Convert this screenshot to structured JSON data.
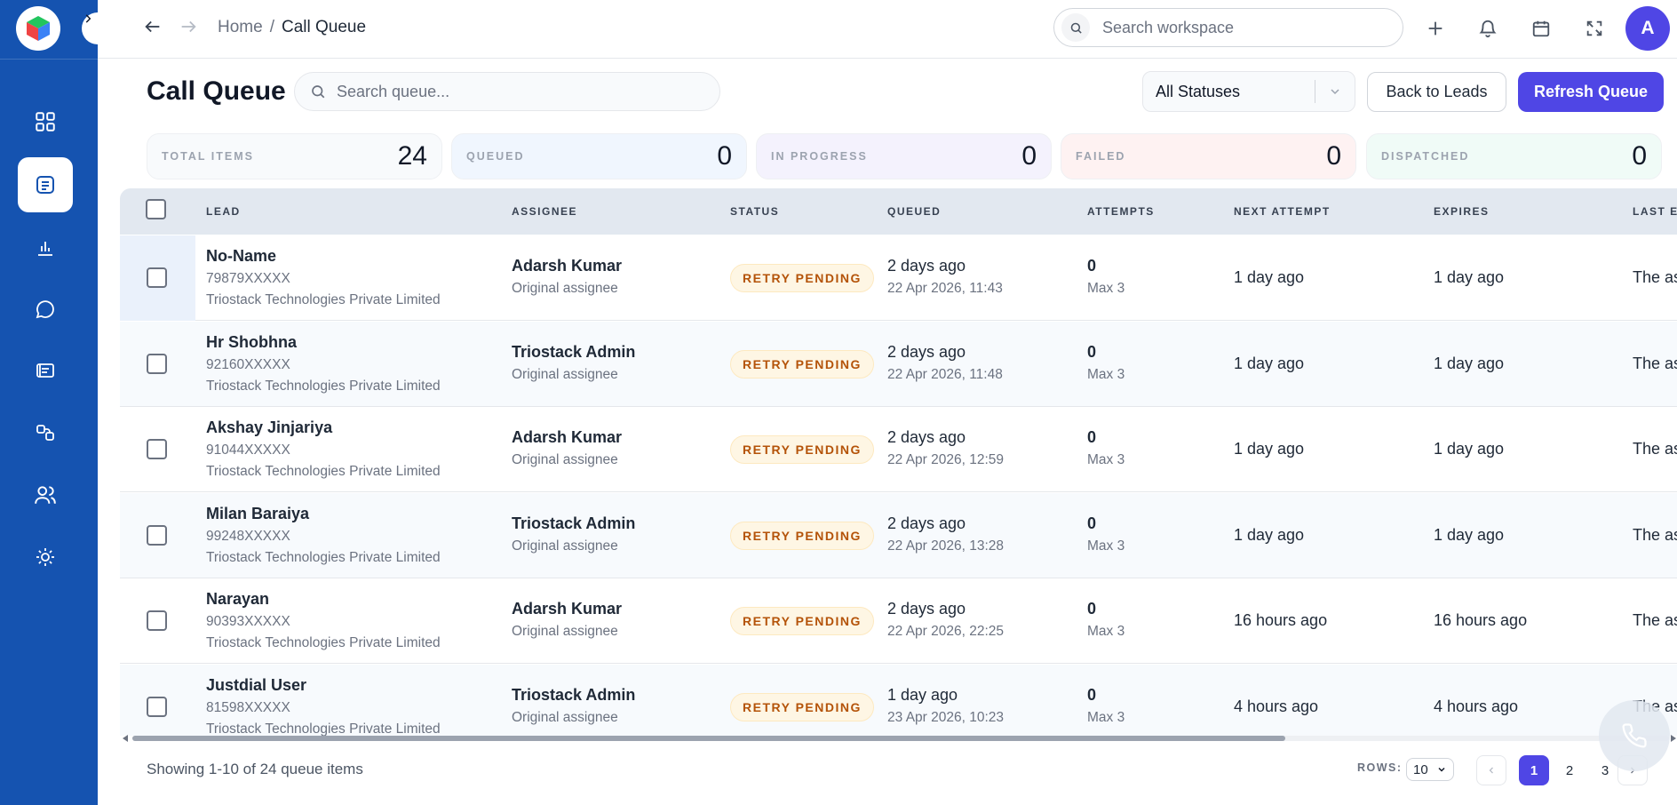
{
  "breadcrumb": {
    "home": "Home",
    "separator": "/",
    "current": "Call Queue"
  },
  "global_search": {
    "placeholder": "Search workspace"
  },
  "user": {
    "avatar_initial": "A"
  },
  "page": {
    "title": "Call Queue",
    "search_placeholder": "Search queue...",
    "status_filter": "All Statuses",
    "back_button": "Back to Leads",
    "refresh_button": "Refresh Queue"
  },
  "stats": [
    {
      "label": "TOTAL ITEMS",
      "value": "24",
      "bg": "#f8fafc"
    },
    {
      "label": "QUEUED",
      "value": "0",
      "bg": "#f0f6fe"
    },
    {
      "label": "IN PROGRESS",
      "value": "0",
      "bg": "#f4f2fd"
    },
    {
      "label": "FAILED",
      "value": "0",
      "bg": "#fef2f2"
    },
    {
      "label": "DISPATCHED",
      "value": "0",
      "bg": "#f0fbf7"
    }
  ],
  "table": {
    "columns": [
      "LEAD",
      "ASSIGNEE",
      "STATUS",
      "QUEUED",
      "ATTEMPTS",
      "NEXT ATTEMPT",
      "EXPIRES",
      "LAST E"
    ],
    "rows": [
      {
        "name": "No-Name",
        "phone": "79879XXXXX",
        "company": "Triostack Technologies Private Limited",
        "assignee": "Adarsh Kumar",
        "assignee_sub": "Original assignee",
        "status": "RETRY PENDING",
        "queued": "2 days ago",
        "queued_at": "22 Apr 2026, 11:43",
        "attempts": "0",
        "attempts_max": "Max 3",
        "next_attempt": "1 day ago",
        "expires": "1 day ago",
        "last": "The as"
      },
      {
        "name": "Hr Shobhna",
        "phone": "92160XXXXX",
        "company": "Triostack Technologies Private Limited",
        "assignee": "Triostack Admin",
        "assignee_sub": "Original assignee",
        "status": "RETRY PENDING",
        "queued": "2 days ago",
        "queued_at": "22 Apr 2026, 11:48",
        "attempts": "0",
        "attempts_max": "Max 3",
        "next_attempt": "1 day ago",
        "expires": "1 day ago",
        "last": "The as"
      },
      {
        "name": "Akshay Jinjariya",
        "phone": "91044XXXXX",
        "company": "Triostack Technologies Private Limited",
        "assignee": "Adarsh Kumar",
        "assignee_sub": "Original assignee",
        "status": "RETRY PENDING",
        "queued": "2 days ago",
        "queued_at": "22 Apr 2026, 12:59",
        "attempts": "0",
        "attempts_max": "Max 3",
        "next_attempt": "1 day ago",
        "expires": "1 day ago",
        "last": "The as"
      },
      {
        "name": "Milan Baraiya",
        "phone": "99248XXXXX",
        "company": "Triostack Technologies Private Limited",
        "assignee": "Triostack Admin",
        "assignee_sub": "Original assignee",
        "status": "RETRY PENDING",
        "queued": "2 days ago",
        "queued_at": "22 Apr 2026, 13:28",
        "attempts": "0",
        "attempts_max": "Max 3",
        "next_attempt": "1 day ago",
        "expires": "1 day ago",
        "last": "The as"
      },
      {
        "name": "Narayan",
        "phone": "90393XXXXX",
        "company": "Triostack Technologies Private Limited",
        "assignee": "Adarsh Kumar",
        "assignee_sub": "Original assignee",
        "status": "RETRY PENDING",
        "queued": "2 days ago",
        "queued_at": "22 Apr 2026, 22:25",
        "attempts": "0",
        "attempts_max": "Max 3",
        "next_attempt": "16 hours ago",
        "expires": "16 hours ago",
        "last": "The as"
      },
      {
        "name": "Justdial User",
        "phone": "81598XXXXX",
        "company": "Triostack Technologies Private Limited",
        "assignee": "Triostack Admin",
        "assignee_sub": "Original assignee",
        "status": "RETRY PENDING",
        "queued": "1 day ago",
        "queued_at": "23 Apr 2026, 10:23",
        "attempts": "0",
        "attempts_max": "Max 3",
        "next_attempt": "4 hours ago",
        "expires": "4 hours ago",
        "last": "The as"
      }
    ]
  },
  "footer": {
    "info": "Showing 1-10 of 24 queue items",
    "rows_label": "ROWS:",
    "rows_value": "10",
    "pages": [
      "1",
      "2",
      "3"
    ],
    "current_page": "1"
  },
  "colors": {
    "sidebar": "#1553b0",
    "accent": "#4f46e5",
    "status_badge_text": "#b45309"
  }
}
